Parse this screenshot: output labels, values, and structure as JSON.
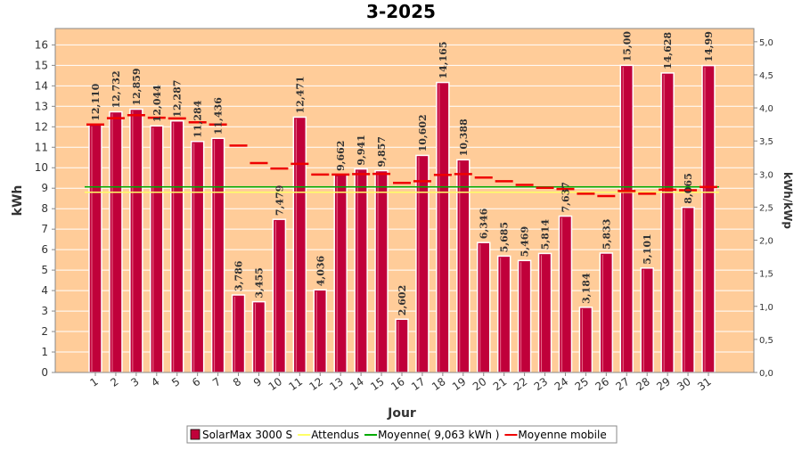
{
  "chart_data": {
    "type": "bar",
    "title": "3-2025",
    "xlabel": "Jour",
    "ylabel": "kWh",
    "ylabel_right": "kWh/kWp",
    "ylim": [
      0,
      16.8
    ],
    "ylim_right": [
      0,
      5.2
    ],
    "y_ticks": [
      "0",
      "1",
      "2",
      "3",
      "4",
      "5",
      "6",
      "7",
      "8",
      "9",
      "10",
      "11",
      "12",
      "13",
      "14",
      "15",
      "16"
    ],
    "y_ticks_right": [
      "0,0",
      "0,5",
      "1,0",
      "1,5",
      "2,0",
      "2,5",
      "3,0",
      "3,5",
      "4,0",
      "4,5",
      "5,0"
    ],
    "grid": true,
    "categories": [
      "1",
      "2",
      "3",
      "4",
      "5",
      "6",
      "7",
      "8",
      "9",
      "10",
      "11",
      "12",
      "13",
      "14",
      "15",
      "16",
      "17",
      "18",
      "19",
      "20",
      "21",
      "22",
      "23",
      "24",
      "25",
      "26",
      "27",
      "28",
      "29",
      "30",
      "31"
    ],
    "series": [
      {
        "name": "SolarMax 3000 S",
        "type": "bar",
        "color": "#c0003a",
        "values": [
          12.11,
          12.732,
          12.859,
          12.044,
          12.287,
          11.284,
          11.436,
          3.786,
          3.455,
          7.479,
          12.471,
          4.036,
          9.662,
          9.941,
          9.857,
          2.602,
          10.602,
          14.165,
          10.388,
          6.346,
          5.685,
          5.469,
          5.814,
          7.637,
          3.184,
          5.833,
          15.0,
          5.101,
          14.628,
          8.065,
          14.99
        ],
        "labels": [
          "12,110",
          "12,732",
          "12,859",
          "12,044",
          "12,287",
          "11,284",
          "11,436",
          "3,786",
          "3,455",
          "7,479",
          "12,471",
          "4,036",
          "9,662",
          "9,941",
          "9,857",
          "2,602",
          "10,602",
          "14,165",
          "10,388",
          "6,346",
          "5,685",
          "5,469",
          "5,814",
          "7,637",
          "3,184",
          "5,833",
          "15,00",
          "5,101",
          "14,628",
          "8,065",
          "14,99"
        ]
      },
      {
        "name": "Attendus",
        "type": "line",
        "color": "#ffff66",
        "values": [
          8.8,
          8.8,
          8.8,
          8.8,
          8.8,
          8.8,
          8.8,
          8.8,
          8.8,
          8.8,
          8.8,
          8.8,
          8.8,
          8.8,
          8.8,
          8.8,
          8.8,
          8.8,
          8.8,
          8.8,
          8.8,
          8.8,
          8.8,
          8.8,
          8.8,
          8.8,
          8.8,
          8.8,
          8.8,
          8.8,
          8.8
        ]
      },
      {
        "name": "Moyenne( 9,063 kWh )",
        "type": "line",
        "color": "#00aa00",
        "values": [
          9.063,
          9.063,
          9.063,
          9.063,
          9.063,
          9.063,
          9.063,
          9.063,
          9.063,
          9.063,
          9.063,
          9.063,
          9.063,
          9.063,
          9.063,
          9.063,
          9.063,
          9.063,
          9.063,
          9.063,
          9.063,
          9.063,
          9.063,
          9.063,
          9.063,
          9.063,
          9.063,
          9.063,
          9.063,
          9.063,
          9.063
        ]
      },
      {
        "name": "Moyenne mobile",
        "type": "step",
        "color": "#ee0000",
        "values": [
          12.11,
          12.42,
          12.57,
          12.44,
          12.41,
          12.22,
          12.11,
          11.08,
          10.23,
          9.96,
          10.19,
          9.67,
          9.67,
          9.69,
          9.7,
          9.26,
          9.34,
          9.65,
          9.69,
          9.52,
          9.34,
          9.16,
          9.02,
          8.96,
          8.73,
          8.62,
          8.86,
          8.73,
          8.93,
          8.9,
          9.06
        ]
      }
    ]
  }
}
